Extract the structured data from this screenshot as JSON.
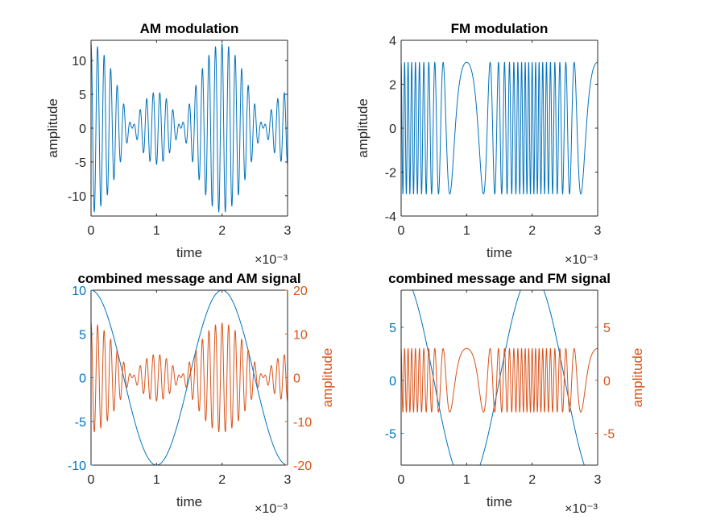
{
  "colors": {
    "blue": "#0072BD",
    "orange": "#D95319",
    "axis": "#262626"
  },
  "chart_data": [
    {
      "type": "line",
      "title": "AM modulation",
      "xlabel": "time",
      "ylabel": "amplitude",
      "x_exponent_label": "×10⁻³",
      "xlim": [
        0,
        0.003
      ],
      "ylim": [
        -13,
        13
      ],
      "xticks": [
        0,
        0.001,
        0.002,
        0.003
      ],
      "xtick_labels": [
        "0",
        "1",
        "2",
        "3"
      ],
      "yticks": [
        -10,
        -5,
        0,
        5,
        10
      ],
      "ytick_labels": [
        "-10",
        "-5",
        "0",
        "5",
        "10"
      ],
      "series": [
        {
          "signal": "AM",
          "color": "#0072BD",
          "t_start": 0,
          "t_end": 0.003,
          "carrier_freq_hz": 10000,
          "message_freq_hz": 500,
          "message_amp": 10,
          "message_phase": "cos",
          "am_sensitivity": 0.25,
          "peak_amplitude": 12.5
        }
      ]
    },
    {
      "type": "line",
      "title": "FM modulation",
      "xlabel": "time",
      "ylabel": "amplitude",
      "x_exponent_label": "×10⁻³",
      "xlim": [
        0,
        0.003
      ],
      "ylim": [
        -4,
        4
      ],
      "xticks": [
        0,
        0.001,
        0.002,
        0.003
      ],
      "xtick_labels": [
        "0",
        "1",
        "2",
        "3"
      ],
      "yticks": [
        -4,
        -2,
        0,
        2,
        4
      ],
      "ytick_labels": [
        "-4",
        "-2",
        "0",
        "2",
        "4"
      ],
      "series": [
        {
          "signal": "FM",
          "color": "#0072BD",
          "t_start": 0,
          "t_end": 0.003,
          "carrier_freq_hz": 10000,
          "message_freq_hz": 500,
          "message_amp": 10,
          "freq_deviation_hz": 9000,
          "peak_amplitude": 3
        }
      ]
    },
    {
      "type": "line",
      "title": "combined message and AM signal",
      "xlabel": "time",
      "ylabel_right": "amplitude",
      "x_exponent_label": "×10⁻³",
      "xlim": [
        0,
        0.003
      ],
      "ylim_left": [
        -10,
        10
      ],
      "ylim_right": [
        -20,
        20
      ],
      "xticks": [
        0,
        0.001,
        0.002,
        0.003
      ],
      "xtick_labels": [
        "0",
        "1",
        "2",
        "3"
      ],
      "yticks_left": [
        -10,
        -5,
        0,
        5,
        10
      ],
      "ytick_labels_left": [
        "-10",
        "-5",
        "0",
        "5",
        "10"
      ],
      "yticks_right": [
        -20,
        -10,
        0,
        10,
        20
      ],
      "ytick_labels_right": [
        "-20",
        "-10",
        "0",
        "10",
        "20"
      ],
      "series": [
        {
          "signal": "message",
          "axis": "left",
          "color": "#0072BD",
          "t_start": 0,
          "t_end": 0.003,
          "message_freq_hz": 500,
          "message_amp": 10
        },
        {
          "signal": "AM",
          "axis": "right",
          "color": "#D95319",
          "t_start": 0,
          "t_end": 0.003,
          "carrier_freq_hz": 10000,
          "message_freq_hz": 500,
          "message_amp": 10,
          "am_sensitivity": 0.25,
          "peak_amplitude": 12.5
        }
      ]
    },
    {
      "type": "line",
      "title": "combined message and FM signal",
      "xlabel": "time",
      "ylabel_right": "amplitude",
      "x_exponent_label": "×10⁻³",
      "xlim": [
        0,
        0.003
      ],
      "ylim_left": [
        -8,
        8.5
      ],
      "ylim_right": [
        -8,
        8.5
      ],
      "xticks": [
        0,
        0.001,
        0.002,
        0.003
      ],
      "xtick_labels": [
        "0",
        "1",
        "2",
        "3"
      ],
      "yticks_left": [
        -5,
        0,
        5
      ],
      "ytick_labels_left": [
        "-5",
        "0",
        "5"
      ],
      "yticks_right": [
        -5,
        0,
        5
      ],
      "ytick_labels_right": [
        "-5",
        "0",
        "5"
      ],
      "series": [
        {
          "signal": "message",
          "axis": "left",
          "color": "#0072BD",
          "t_start": 0,
          "t_end": 0.003,
          "message_freq_hz": 500,
          "message_amp": 10
        },
        {
          "signal": "FM",
          "axis": "right",
          "color": "#D95319",
          "t_start": 0,
          "t_end": 0.003,
          "carrier_freq_hz": 10000,
          "message_freq_hz": 500,
          "message_amp": 10,
          "freq_deviation_hz": 9000,
          "peak_amplitude": 3
        }
      ]
    }
  ]
}
